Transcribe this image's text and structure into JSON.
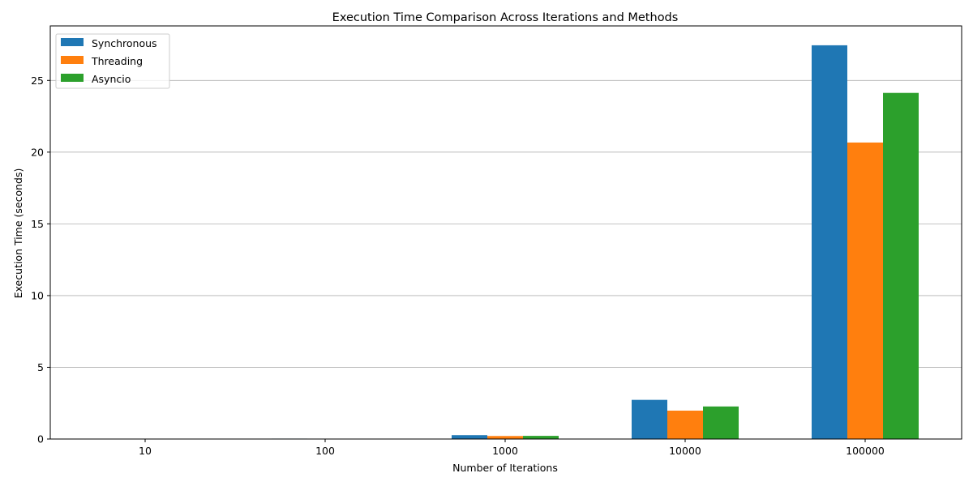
{
  "chart_data": {
    "type": "bar",
    "title": "Execution Time Comparison Across Iterations and Methods",
    "xlabel": "Number of Iterations",
    "ylabel": "Execution Time (seconds)",
    "categories": [
      "10",
      "100",
      "1000",
      "10000",
      "100000"
    ],
    "series": [
      {
        "name": "Synchronous",
        "color": "#1f77b4",
        "values": [
          0.003,
          0.03,
          0.27,
          2.73,
          27.45
        ]
      },
      {
        "name": "Threading",
        "color": "#ff7f0e",
        "values": [
          0.002,
          0.02,
          0.21,
          1.98,
          20.67
        ]
      },
      {
        "name": "Asyncio",
        "color": "#2ca02c",
        "values": [
          0.002,
          0.02,
          0.22,
          2.27,
          24.13
        ]
      }
    ],
    "ylim": [
      0,
      28.8
    ],
    "yticks": [
      0,
      5,
      10,
      15,
      20,
      25
    ],
    "grid": "y",
    "legend_position": "top-left"
  }
}
